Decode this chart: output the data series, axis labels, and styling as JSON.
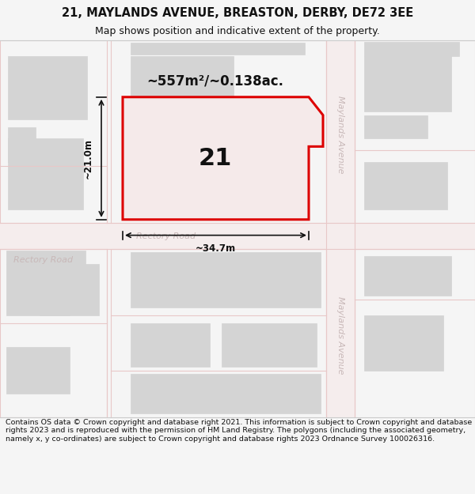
{
  "title_line1": "21, MAYLANDS AVENUE, BREASTON, DERBY, DE72 3EE",
  "title_line2": "Map shows position and indicative extent of the property.",
  "footer_text": "Contains OS data © Crown copyright and database right 2021. This information is subject to Crown copyright and database rights 2023 and is reproduced with the permission of HM Land Registry. The polygons (including the associated geometry, namely x, y co-ordinates) are subject to Crown copyright and database rights 2023 Ordnance Survey 100026316.",
  "map_bg": "#ffffff",
  "road_color": "#e8c8c8",
  "building_fill": "#d4d4d4",
  "building_edge": "#d4d4d4",
  "highlight_fill": "#f5eaea",
  "highlight_edge": "#dd0000",
  "road_label_color": "#c8b8b8",
  "area_label": "~557m²/~0.138ac.",
  "plot_label": "21",
  "dim_h_label": "~21.0m",
  "dim_w_label": "~34.7m",
  "road1_label": "Rectory Road",
  "road2_label": "Maylands Avenue",
  "title_fontsize": 10.5,
  "subtitle_fontsize": 9,
  "footer_fontsize": 6.8
}
